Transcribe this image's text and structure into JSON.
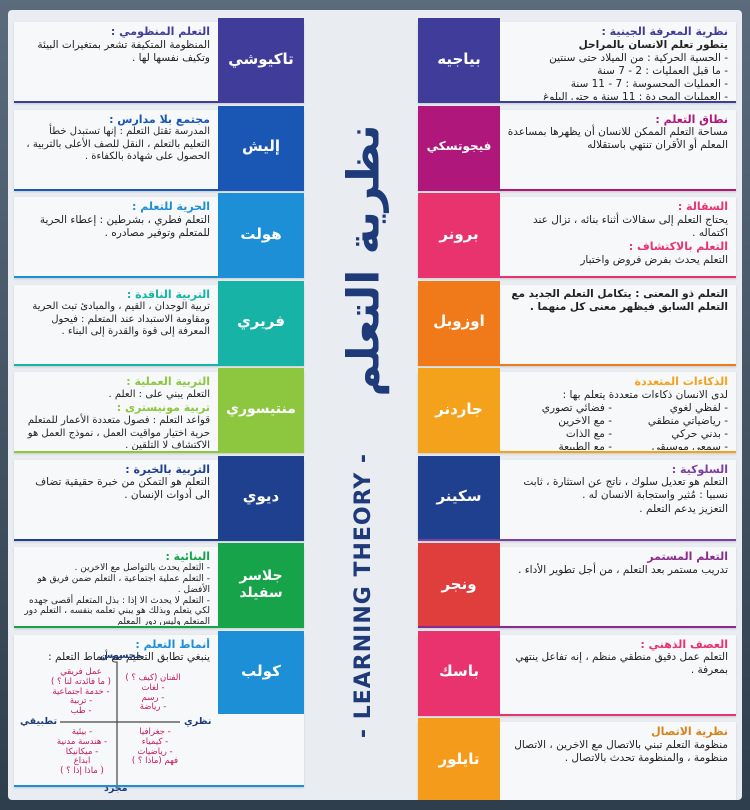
{
  "title_ar": "نظرية التعلم",
  "title_en": "- LEARNING THEORY -",
  "right": [
    {
      "name": "بياجيه",
      "color": "#3f3d99",
      "accent": "#3f3d99",
      "lines": [
        {
          "t": "نظرية المعرفة الجينية :",
          "cls": "h"
        },
        {
          "t": "يتطور تعلم الانسان بالمراحل",
          "cls": "b"
        },
        {
          "t": "- الحسية الحركية : من الميلاد حتى سنتين"
        },
        {
          "t": "- ما قبل العمليات : 2 - 7 سنة"
        },
        {
          "t": "- العمليات المحسوسة : 7 - 11 سنة"
        },
        {
          "t": "- العمليات المجردة : 11 سنة و حتى البلوغ"
        }
      ]
    },
    {
      "name": "فيجوتسكي",
      "color": "#b0177b",
      "accent": "#b0177b",
      "lines": [
        {
          "t": "نطاق التعلم :",
          "cls": "h"
        },
        {
          "t": "مساحة التعلم الممكن للانسان أن يظهرها بمساعدة المعلم أو الأقران تنتهي باستقلاله"
        }
      ]
    },
    {
      "name": "برونر",
      "color": "#e8336f",
      "accent": "#e8336f",
      "lines": [
        {
          "t": "السقالة :",
          "cls": "h"
        },
        {
          "t": "يحتاج التعلم إلى سقالات أثناء بنائه ، تزال عند اكتماله ."
        },
        {
          "t": "التعلم بالاكتشاف :",
          "cls": "h"
        },
        {
          "t": "التعلم يحدث بفرض فروض واختبار"
        }
      ]
    },
    {
      "name": "اوزوبل",
      "color": "#f07a1a",
      "accent": "#f07a1a",
      "lines": [
        {
          "t": "التعلم ذو المعنى : يتكامل التعلم الجديد مع التعلم السابق فيظهر معنى كل منهما .",
          "cls": "b"
        }
      ]
    },
    {
      "name": "جاردنر",
      "color": "#f4a11c",
      "accent": "#f4a11c",
      "lines": [
        {
          "t": "الذكاءات المتعددة",
          "cls": "h"
        },
        {
          "t": "لدى الانسان ذكاءات متعددة يتعلم بها :"
        }
      ],
      "cols": [
        [
          "- لفظي لغوي",
          "- رياضياتي منطقي",
          "- بدني حركي",
          "- سمعي موسيقي"
        ],
        [
          "- فضائي تصوري",
          "- مع الاخرين",
          "- مع الذات",
          "- مع الطبيعة"
        ]
      ]
    },
    {
      "name": "سكينر",
      "color": "#1f3f8f",
      "accent": "#7b3fa0",
      "lines": [
        {
          "t": "السلوكية :",
          "cls": "h"
        },
        {
          "t": "التعلم هو تعديل سلوك ، ناتج عن استثارة ، ثابت نسبيا : مُثير واستجابة الانسان له ."
        },
        {
          "t": "التعزيز يدعم التعلم ."
        }
      ]
    },
    {
      "name": "ونجر",
      "color": "#e03d3d",
      "accent": "#8a2c8e",
      "lines": [
        {
          "t": "التعلم المستمر",
          "cls": "h"
        },
        {
          "t": "تدريب مستمر بعد التعلم ، من أجل تطوير الأداء ."
        }
      ]
    },
    {
      "name": "باسك",
      "color": "#e8336f",
      "accent": "#e8336f",
      "lines": [
        {
          "t": "العصف الذهني :",
          "cls": "h"
        },
        {
          "t": "التعلم عمل دقيق منطقي منظم ، إنه تفاعل ينتهي بمعرفة ."
        }
      ]
    },
    {
      "name": "تايلور",
      "color": "#f59b1c",
      "accent": "#d9821a",
      "lines": [
        {
          "t": "نظرية الاتصال",
          "cls": "h"
        },
        {
          "t": "منظومة التعلم تبني بالاتصال مع الاخرين ، الاتصال منظومة ، والمنظومة تحدث بالاتصال ."
        }
      ]
    }
  ],
  "left": [
    {
      "name": "تاكيوشي",
      "color": "#3f3d99",
      "accent": "#3f3d99",
      "lines": [
        {
          "t": "التعلم المنظومي :",
          "cls": "h"
        },
        {
          "t": "المنظومة المتكيفة تشعر بمتغيرات البيئة وتكيف نفسها لها ."
        }
      ]
    },
    {
      "name": "إليش",
      "color": "#1a56b4",
      "accent": "#1a56b4",
      "lines": [
        {
          "t": "مجتمع بلا مدارس :",
          "cls": "h"
        },
        {
          "t": "المدرسة تقتل التعلم : إنها تستبدل خطأ التعليم بالتعلم ، النقل للصف الأعلى بالتربية ، الحصول على شهادة بالكفاءة ."
        }
      ]
    },
    {
      "name": "هولت",
      "color": "#1c8fd6",
      "accent": "#1c8fd6",
      "lines": [
        {
          "t": "الحرية للتعلم :",
          "cls": "h"
        },
        {
          "t": "التعلم فطري ، بشرطين : إعطاء الحرية للمتعلم وتوفير مصادره ."
        }
      ]
    },
    {
      "name": "فريري",
      "color": "#16b3a6",
      "accent": "#16b3a6",
      "lines": [
        {
          "t": "التربية الناقدة :",
          "cls": "h"
        },
        {
          "t": "تربية الوجدان ، القيم ، والمبادئ تبث الحرية ومقاومة الاستبداد عند المتعلم : فيحول المعرفة إلى قوة والقدرة إلى البناء ."
        }
      ]
    },
    {
      "name": "منتيسوري",
      "color": "#8dc63f",
      "accent": "#8dc63f",
      "lines": [
        {
          "t": "التربية العملية :",
          "cls": "h"
        },
        {
          "t": "التعلم يبني على : العلم ."
        },
        {
          "t": "تربية مونيسترى :",
          "cls": "h"
        },
        {
          "t": "قواعد التعلم : فصول متعددة الأعمار للمتعلم حرية اختيار مواقيت العمل ، نموذج العمل هو الاكتشاف لا التلقين ."
        }
      ]
    },
    {
      "name": "ديوي",
      "color": "#1f3f8f",
      "accent": "#1f3f8f",
      "lines": [
        {
          "t": "التربية بالخبرة :",
          "cls": "h"
        },
        {
          "t": "التعلم هو التمكن من خبرة حقيقية تضاف الى أدوات الإنسان ."
        }
      ]
    },
    {
      "name": "جلاسر سفيلد",
      "color": "#16a34a",
      "accent": "#16a34a",
      "lines": [
        {
          "t": "البنائية :",
          "cls": "h"
        },
        {
          "t": "- التعلم يحدث بالتواصل مع الاخرين ."
        },
        {
          "t": "- التعلم عملية اجتماعية ، التعلم ضمن فريق هو الأفضل ."
        },
        {
          "t": "- التعلم لا يحدث الا إذا : بذل المتعلم أقصى جهده لكي يتعلم وبذلك هو يبني تعلمه بنفسه ، التعلم دور المتعلم وليس دور المعلم"
        }
      ]
    },
    {
      "name": "كولب",
      "color": "#1c8fd6",
      "accent": "#1c8fd6",
      "lines": [
        {
          "t": "أنماط التعلم :",
          "cls": "h"
        },
        {
          "t": "ينبغي تطابق التعليم مع أنماط التعلم :"
        }
      ]
    }
  ],
  "kolb": {
    "top": "محسوس",
    "bottom": "مجرد",
    "left": "تطبيقي",
    "right": "نظري",
    "q_tl": [
      "عمل فريقي",
      "( ما فائدته لنا ؟ )",
      "- خدمة اجتماعية",
      "- تربية",
      "- طب"
    ],
    "q_tr": [
      "الفنان (كيف ؟ )",
      "- لغات",
      "- رسم",
      "- رياضة"
    ],
    "q_bl": [
      "- بيئية",
      "- هندسة مدنية",
      "- ميكانيكا",
      "ابداع",
      "( ماذا إذا ؟ )"
    ],
    "q_br": [
      "- جغرافيا",
      "- كيمياء",
      "- رياضيات",
      "فهم (ماذا ؟ )"
    ]
  }
}
